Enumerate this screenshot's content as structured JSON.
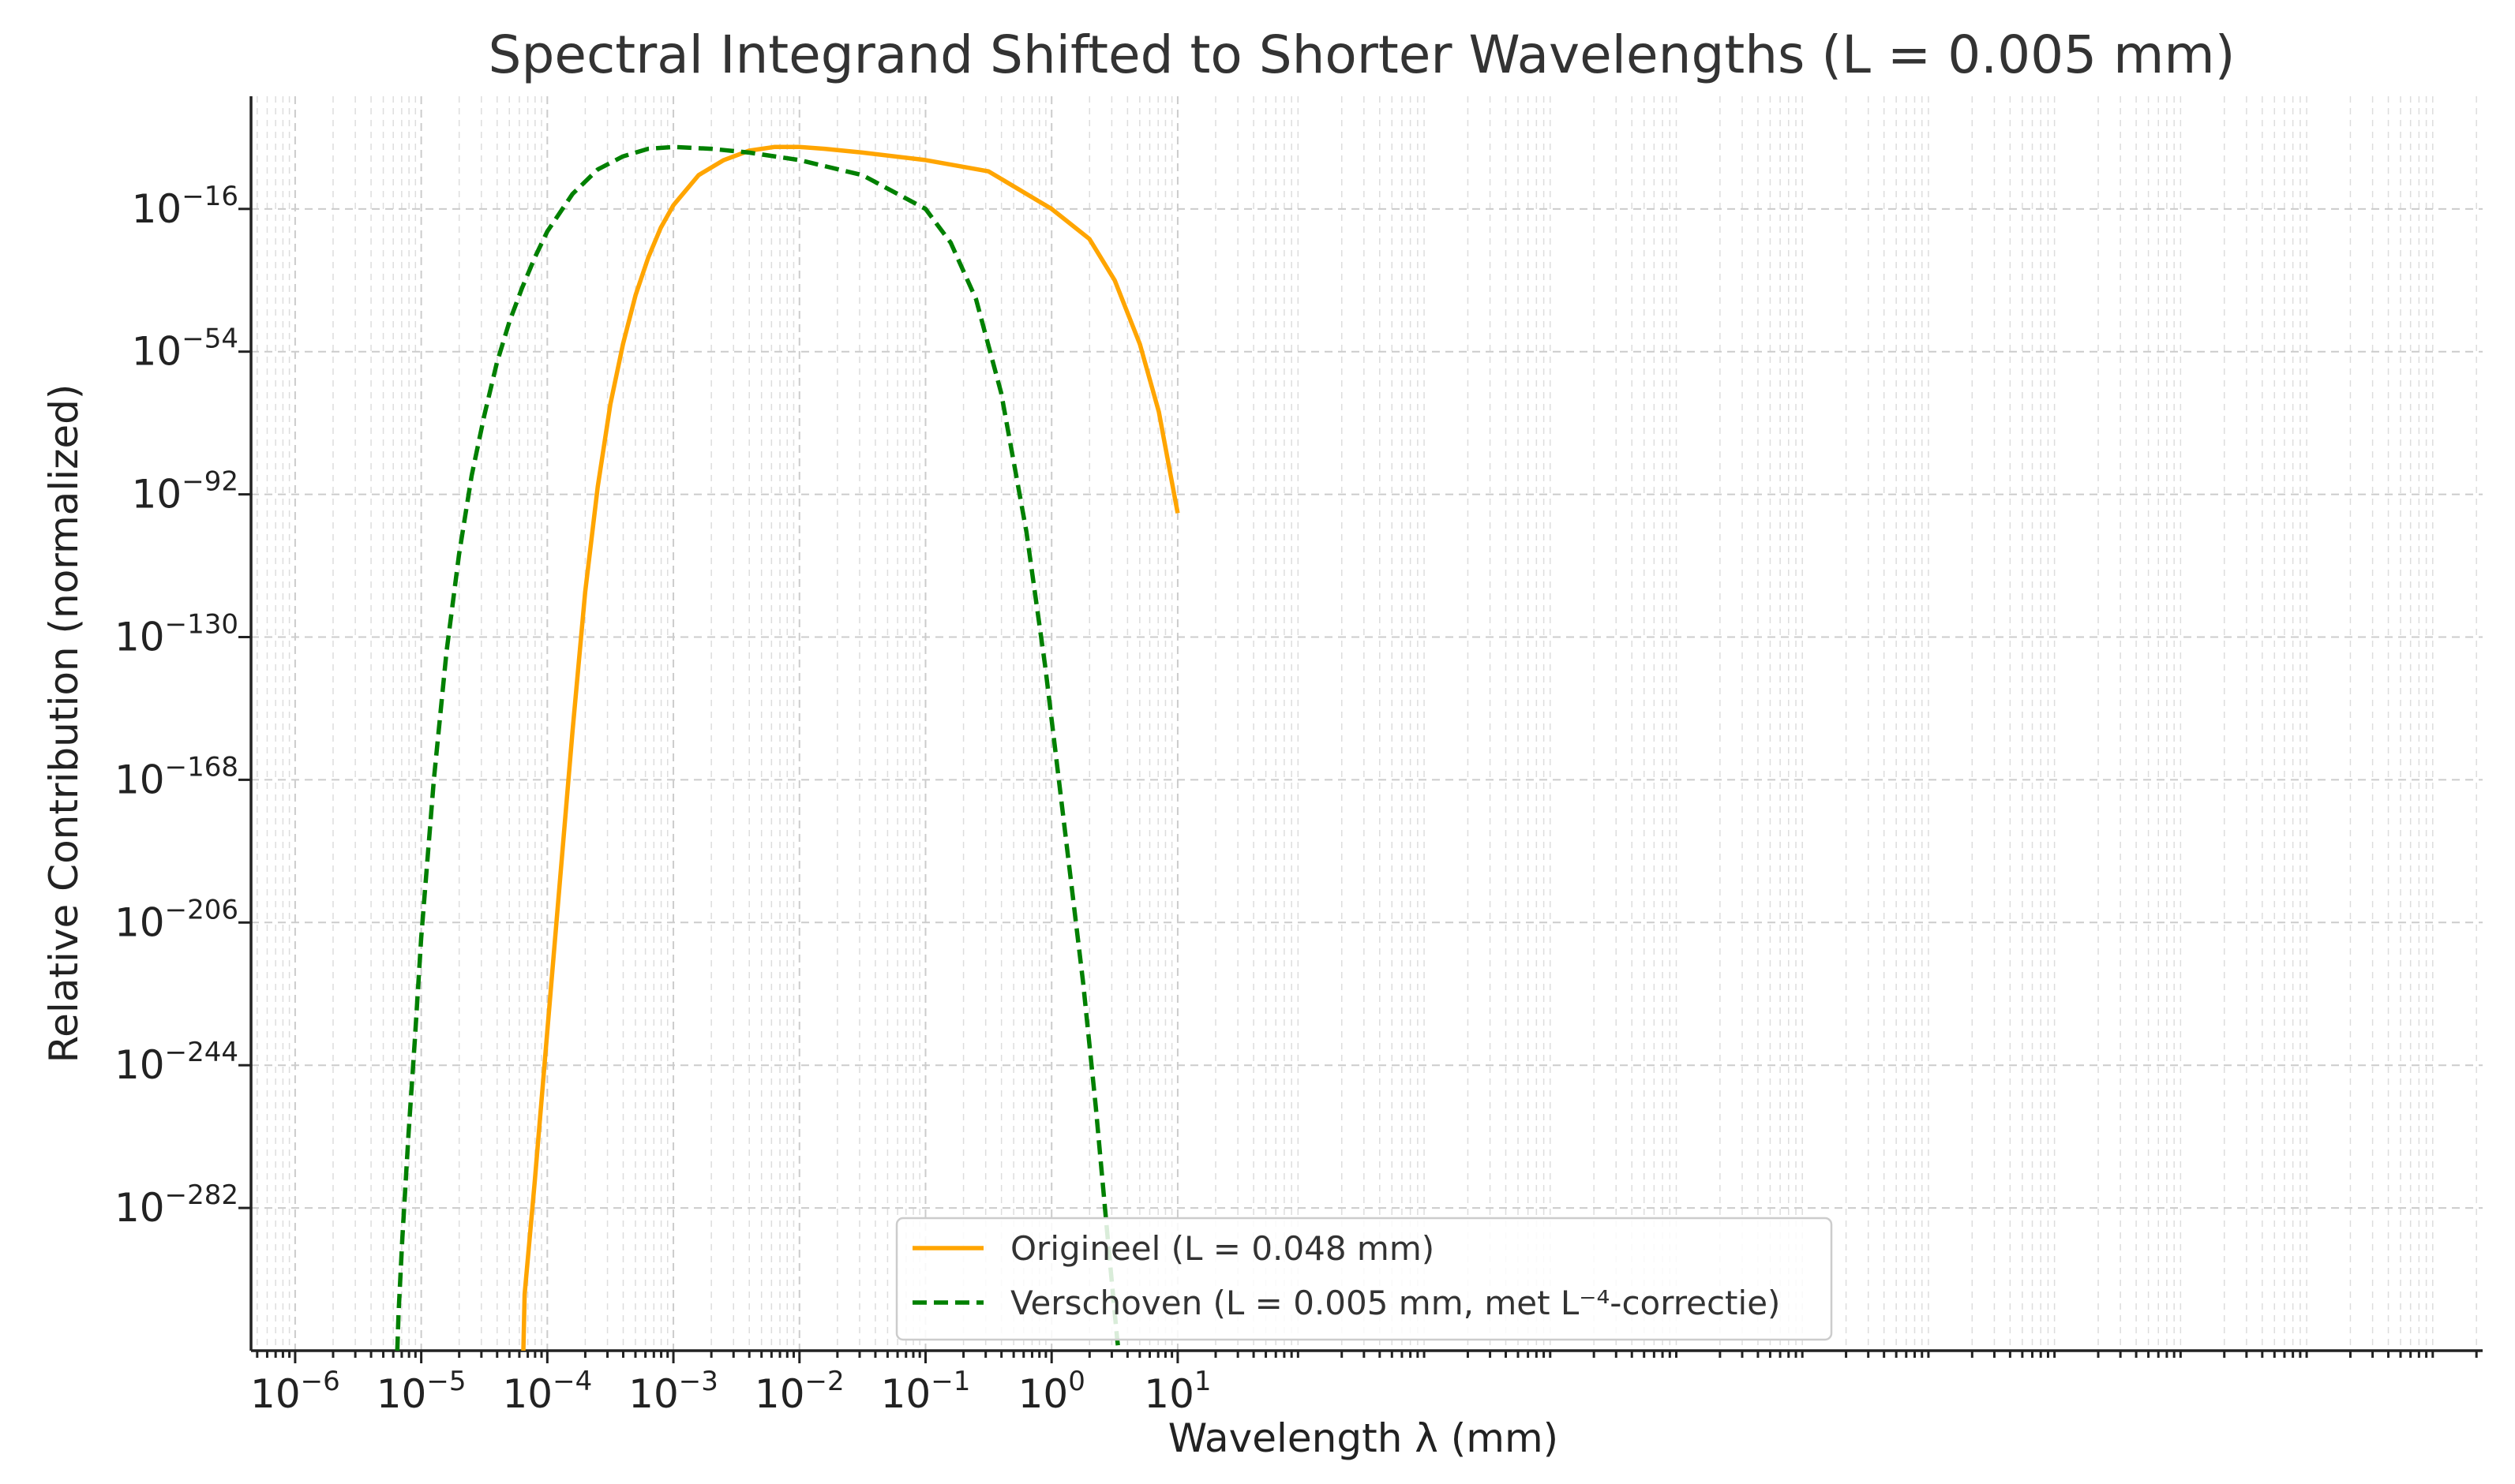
{
  "chart_data": {
    "type": "line",
    "title": "Spectral Integrand Shifted to Shorter Wavelengths (L = 0.005 mm)",
    "xlabel": "Wavelength λ (mm)",
    "ylabel": "Relative Contribution (normalized)",
    "xscale": "log",
    "yscale": "log",
    "xlim_exp": [
      -6.35,
      11.35
    ],
    "ylim_exp": [
      -320,
      14
    ],
    "grid": true,
    "x_ticks": [
      {
        "base": "10",
        "exp": "−6",
        "value": -6
      },
      {
        "base": "10",
        "exp": "−5",
        "value": -5
      },
      {
        "base": "10",
        "exp": "−4",
        "value": -4
      },
      {
        "base": "10",
        "exp": "−3",
        "value": -3
      },
      {
        "base": "10",
        "exp": "−2",
        "value": -2
      },
      {
        "base": "10",
        "exp": "−1",
        "value": -1
      },
      {
        "base": "10",
        "exp": "0",
        "value": 0
      },
      {
        "base": "10",
        "exp": "1",
        "value": 1
      }
    ],
    "y_ticks": [
      {
        "base": "10",
        "exp": "−16",
        "value": -16
      },
      {
        "base": "10",
        "exp": "−54",
        "value": -54
      },
      {
        "base": "10",
        "exp": "−92",
        "value": -92
      },
      {
        "base": "10",
        "exp": "−130",
        "value": -130
      },
      {
        "base": "10",
        "exp": "−168",
        "value": -168
      },
      {
        "base": "10",
        "exp": "−206",
        "value": -206
      },
      {
        "base": "10",
        "exp": "−244",
        "value": -244
      },
      {
        "base": "10",
        "exp": "−282",
        "value": -282
      }
    ],
    "legend_position": "lower-center",
    "series": [
      {
        "name": "Origineel (L = 0.048 mm)",
        "color": "#FFA500",
        "style": "solid",
        "points_log10": [
          [
            -4.19,
            -320
          ],
          [
            -4.18,
            -305
          ],
          [
            -4.1,
            -275
          ],
          [
            -4.0,
            -235
          ],
          [
            -3.9,
            -195
          ],
          [
            -3.8,
            -155
          ],
          [
            -3.7,
            -118
          ],
          [
            -3.6,
            -90
          ],
          [
            -3.5,
            -68
          ],
          [
            -3.4,
            -52
          ],
          [
            -3.3,
            -39
          ],
          [
            -3.2,
            -29
          ],
          [
            -3.1,
            -21
          ],
          [
            -3.0,
            -15
          ],
          [
            -2.8,
            -7
          ],
          [
            -2.6,
            -3
          ],
          [
            -2.4,
            -0.5
          ],
          [
            -2.2,
            0.5
          ],
          [
            -2.0,
            0.5
          ],
          [
            -1.8,
            0
          ],
          [
            -1.5,
            -1
          ],
          [
            -1.0,
            -3
          ],
          [
            -0.5,
            -6
          ],
          [
            0.0,
            -16
          ],
          [
            0.3,
            -24
          ],
          [
            0.5,
            -35
          ],
          [
            0.7,
            -52
          ],
          [
            0.85,
            -70
          ],
          [
            1.0,
            -97
          ]
        ]
      },
      {
        "name": "Verschoven (L = 0.005 mm, met L⁻⁴-correctie)",
        "color": "#008000",
        "style": "dashed",
        "points_log10": [
          [
            -5.19,
            -320
          ],
          [
            -5.18,
            -310
          ],
          [
            -5.15,
            -290
          ],
          [
            -5.1,
            -262
          ],
          [
            -5.05,
            -237
          ],
          [
            -5.0,
            -210
          ],
          [
            -4.9,
            -168
          ],
          [
            -4.8,
            -134
          ],
          [
            -4.7,
            -108
          ],
          [
            -4.6,
            -87
          ],
          [
            -4.5,
            -71
          ],
          [
            -4.4,
            -57
          ],
          [
            -4.3,
            -46
          ],
          [
            -4.2,
            -37
          ],
          [
            -4.1,
            -29
          ],
          [
            -4.0,
            -22
          ],
          [
            -3.8,
            -12
          ],
          [
            -3.6,
            -5.5
          ],
          [
            -3.4,
            -2
          ],
          [
            -3.2,
            0
          ],
          [
            -3.0,
            0.5
          ],
          [
            -2.7,
            0
          ],
          [
            -2.4,
            -1
          ],
          [
            -2.0,
            -3
          ],
          [
            -1.5,
            -7
          ],
          [
            -1.0,
            -16
          ],
          [
            -0.8,
            -25
          ],
          [
            -0.6,
            -40
          ],
          [
            -0.4,
            -65
          ],
          [
            -0.2,
            -102
          ],
          [
            -0.05,
            -138
          ],
          [
            0.1,
            -180
          ],
          [
            0.25,
            -222
          ],
          [
            0.35,
            -255
          ],
          [
            0.45,
            -292
          ],
          [
            0.52,
            -317
          ],
          [
            0.53,
            -320
          ]
        ]
      }
    ]
  }
}
